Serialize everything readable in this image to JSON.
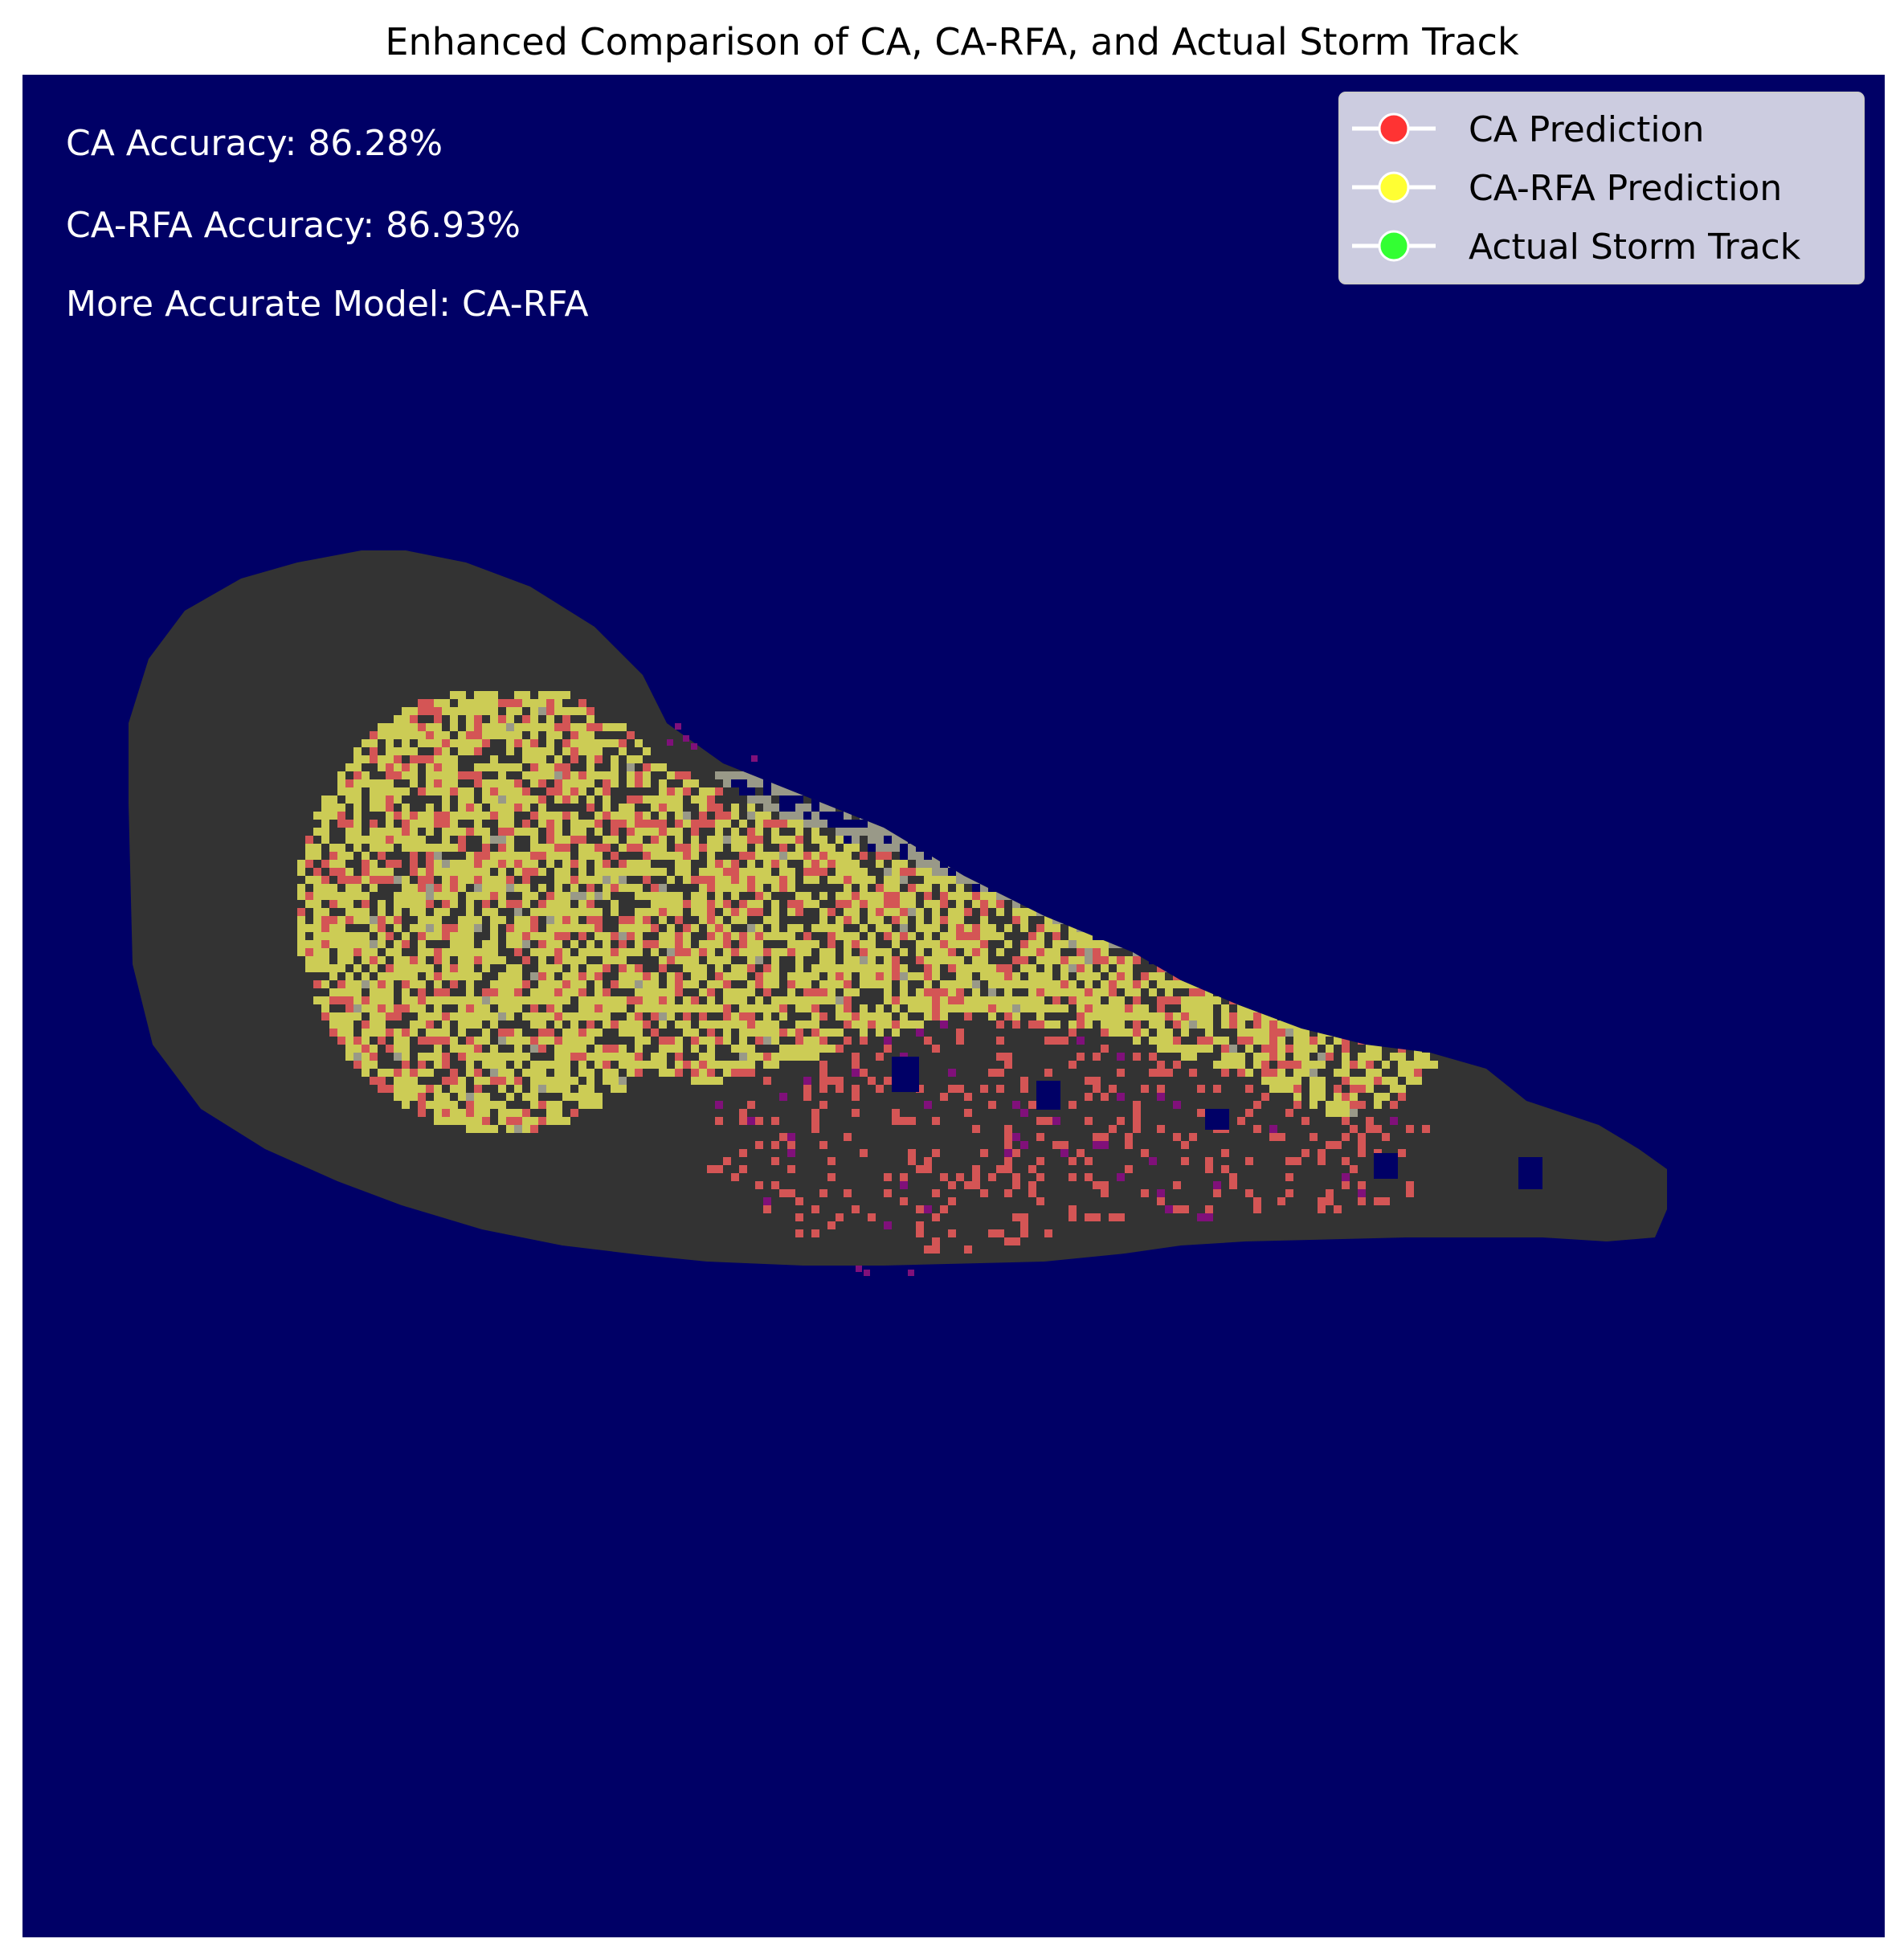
{
  "chart_data": {
    "type": "heatmap",
    "title": "Enhanced Comparison of CA, CA-RFA, and Actual Storm Track",
    "xlabel": "",
    "ylabel": "",
    "axes_visible": false,
    "grid": false,
    "legend_placement": "top-right",
    "legend": [
      {
        "label": "CA Prediction",
        "color": "#ff3333"
      },
      {
        "label": "CA-RFA Prediction",
        "color": "#ffff33"
      },
      {
        "label": "Actual Storm Track",
        "color": "#33ff33"
      }
    ],
    "annotations": [
      "CA Accuracy: 86.28%",
      "CA-RFA Accuracy: 86.93%",
      "More Accurate Model: CA-RFA"
    ],
    "metrics": {
      "ca_accuracy_percent": 86.28,
      "ca_rfa_accuracy_percent": 86.93,
      "more_accurate_model": "CA-RFA"
    },
    "colors": {
      "background": "#000066",
      "storm_region": "#333333",
      "ca_cells": "#d45555",
      "ca_rfa_cells": "#cccc55",
      "overlap_cells": "#999988",
      "anomaly_cells": "#80107a"
    }
  }
}
